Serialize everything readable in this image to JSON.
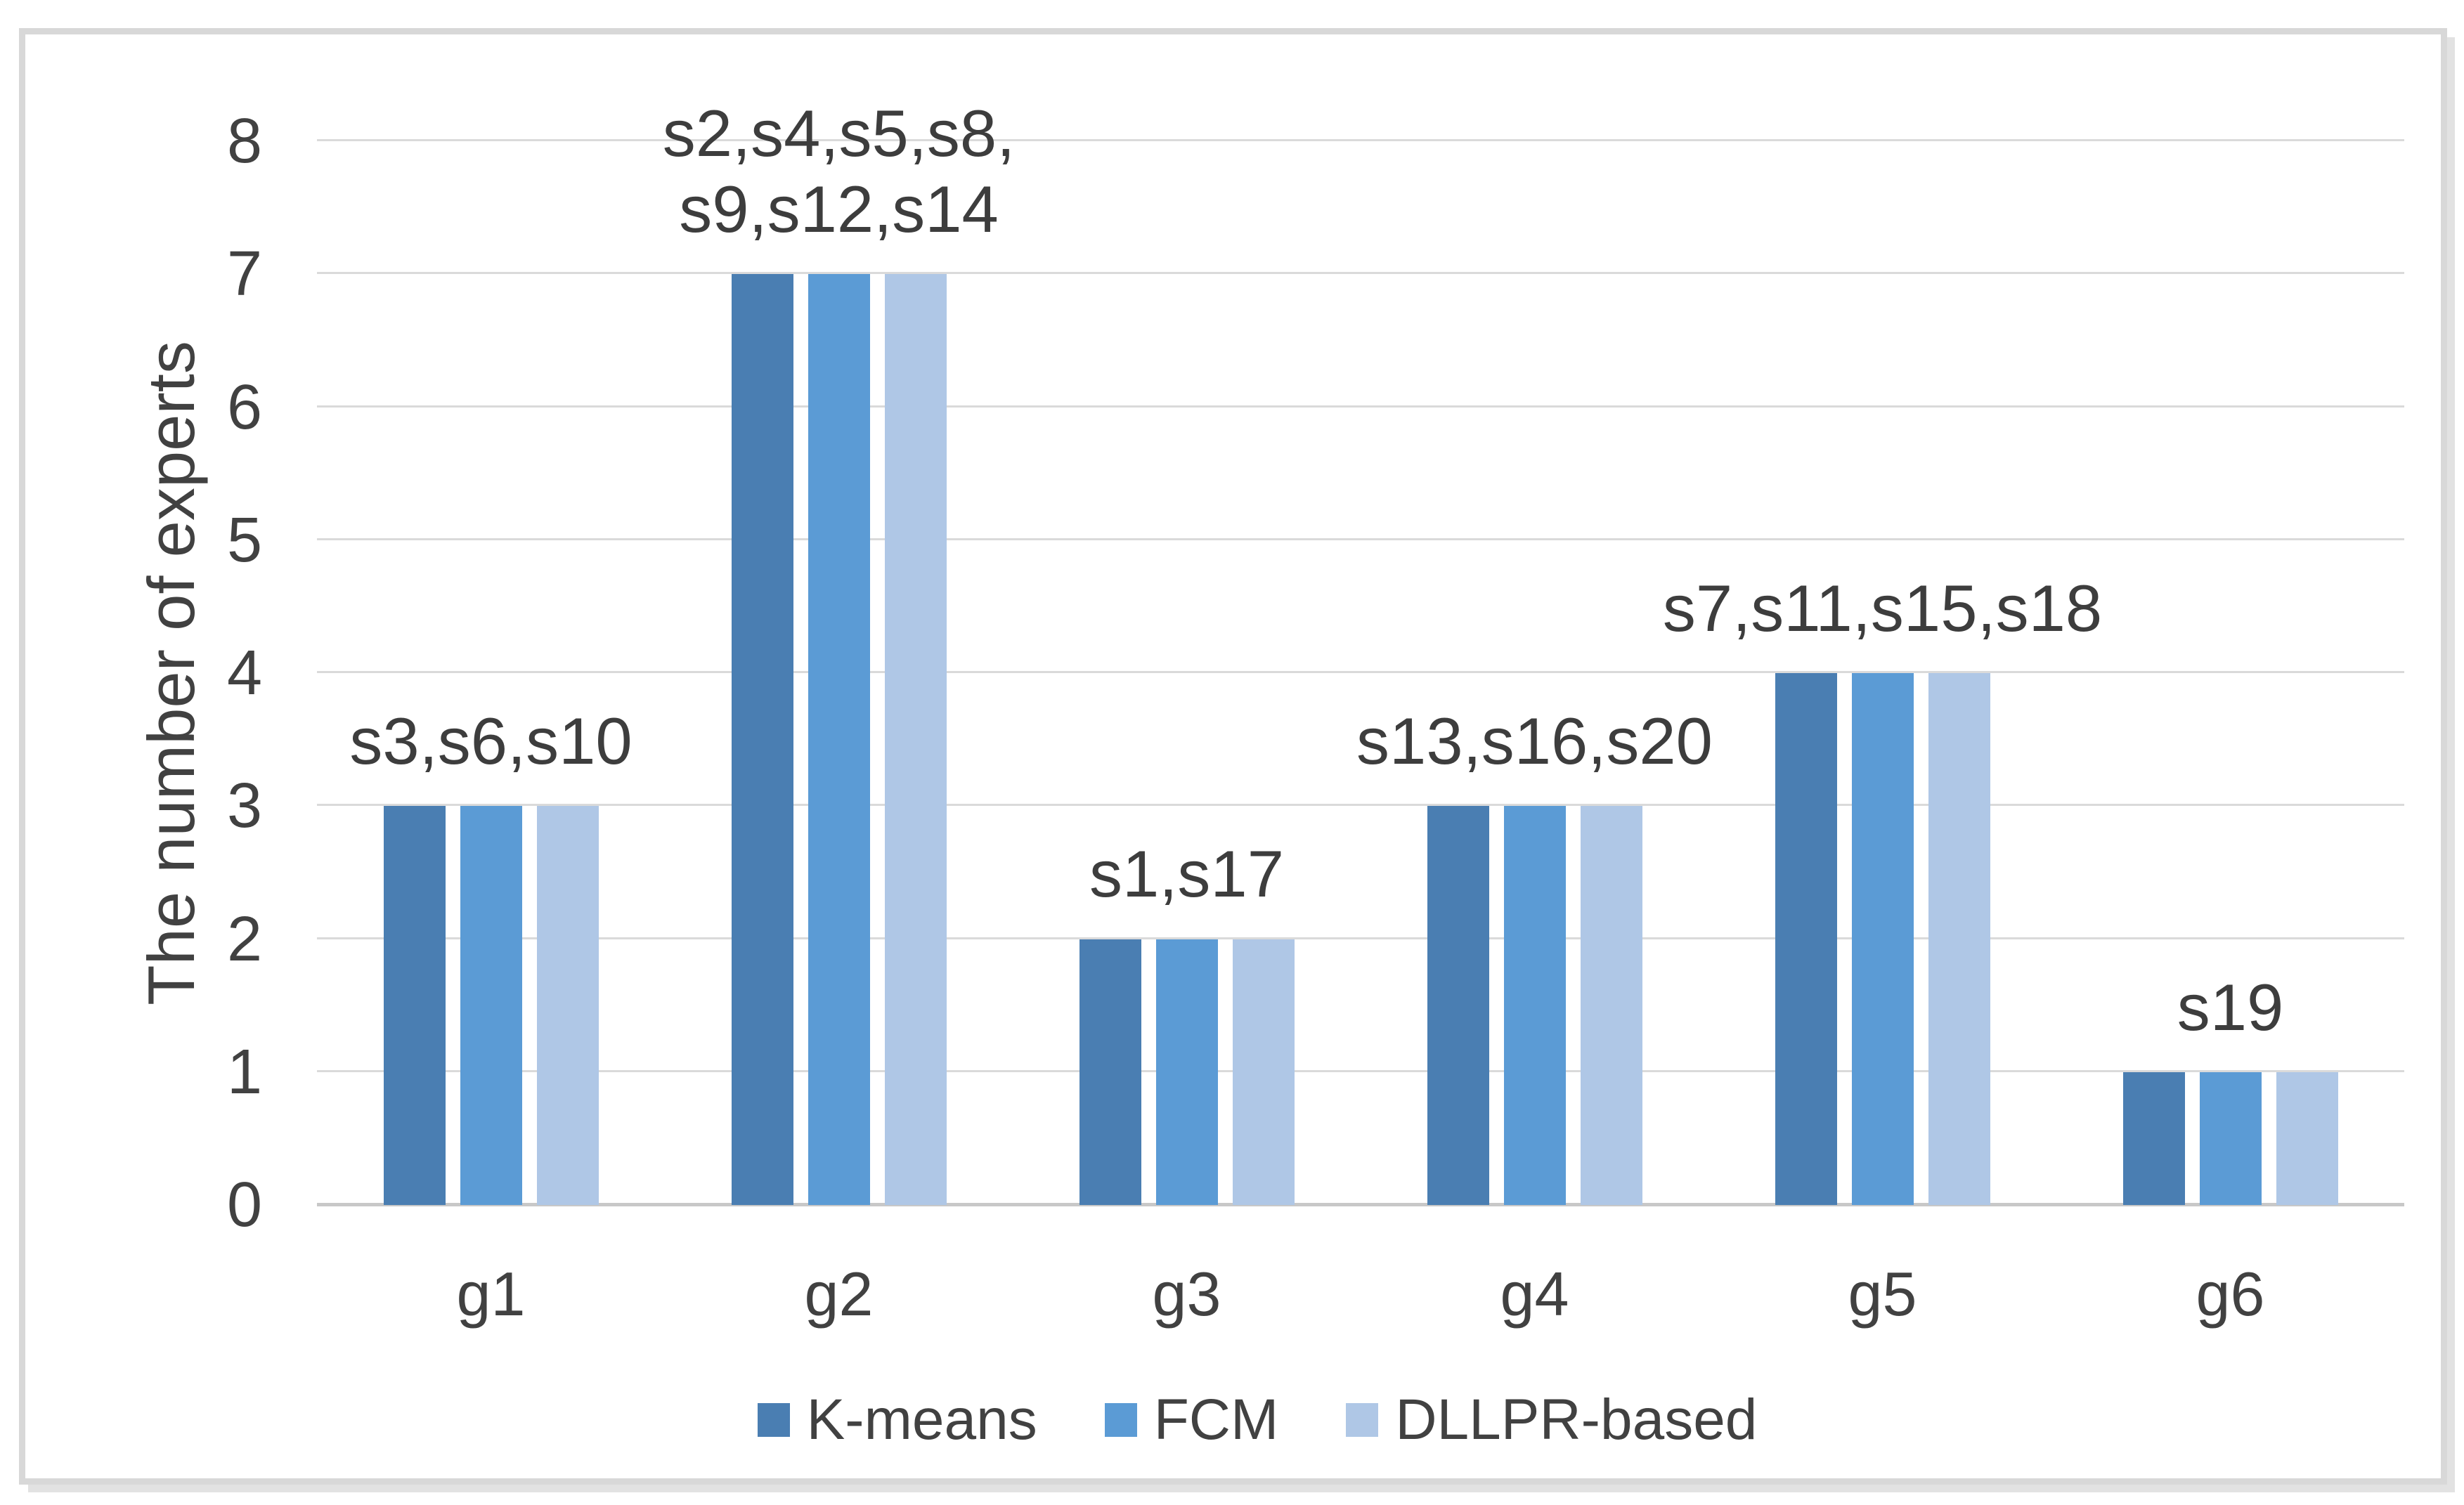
{
  "chart_data": {
    "type": "bar",
    "title": "",
    "categories": [
      "g1",
      "g2",
      "g3",
      "g4",
      "g5",
      "g6"
    ],
    "series": [
      {
        "name": "K-means",
        "color": "#4a7eb2",
        "values": [
          3,
          7,
          2,
          3,
          4,
          1
        ]
      },
      {
        "name": "FCM",
        "color": "#5b9bd5",
        "values": [
          3,
          7,
          2,
          3,
          4,
          1
        ]
      },
      {
        "name": "DLLPR-based",
        "color": "#afc7e6",
        "values": [
          3,
          7,
          2,
          3,
          4,
          1
        ]
      }
    ],
    "bar_annotations": [
      "s3,s6,s10",
      "s2,s4,s5,s8,\ns9,s12,s14",
      "s1,s17",
      "s13,s16,s20",
      "s7,s11,s15,s18",
      "s19"
    ],
    "xlabel": "",
    "ylabel": "The number of experts",
    "ylim": [
      0,
      8
    ],
    "yticks": [
      0,
      1,
      2,
      3,
      4,
      5,
      6,
      7,
      8
    ],
    "grid": true,
    "legend_position": "bottom",
    "legend": [
      "K-means",
      "FCM",
      "DLLPR-based"
    ]
  },
  "colors": {
    "gridline": "#dadada",
    "axis_line": "#c8c8c8",
    "text": "#414141",
    "annotation_text": "#3d3d3d",
    "frame_border": "#d8d8d8",
    "background": "#ffffff"
  }
}
